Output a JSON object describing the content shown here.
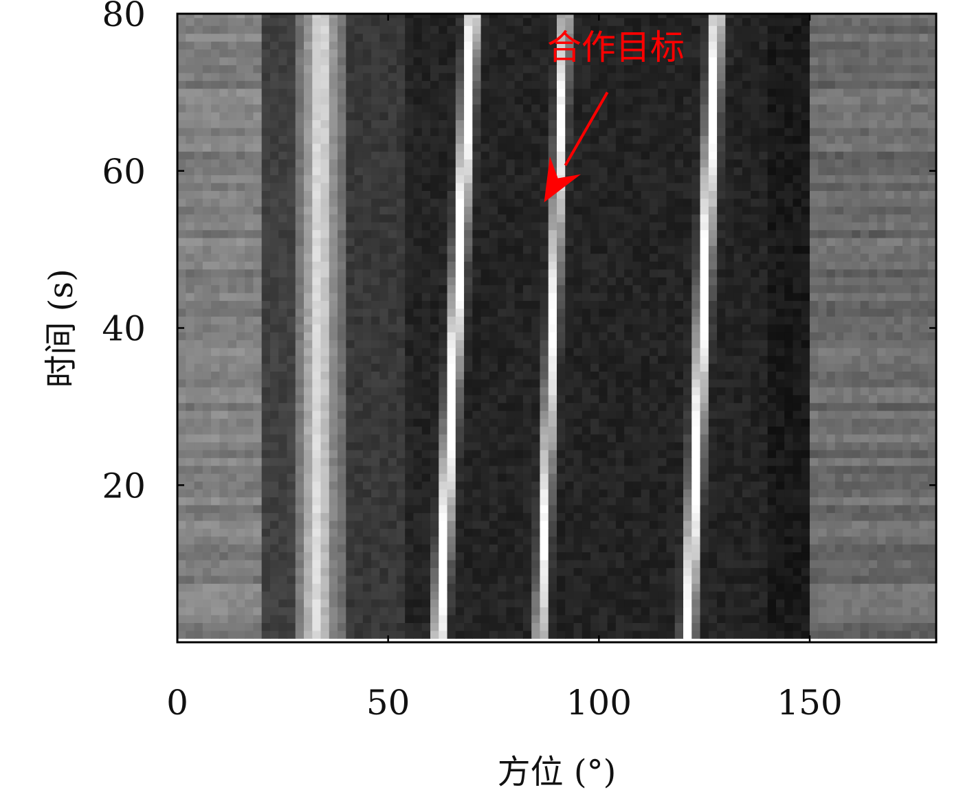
{
  "chart_data": {
    "type": "heatmap",
    "colormap": "gray",
    "xlabel": "方位 (°)",
    "ylabel": "时间 (s)",
    "xlim": [
      0,
      180
    ],
    "ylim": [
      0,
      80
    ],
    "xticks": [
      0,
      50,
      100,
      150
    ],
    "yticks": [
      20,
      40,
      60,
      80
    ],
    "time_samples": [
      1,
      80
    ],
    "background_bands": [
      {
        "from": 0,
        "to": 20,
        "intensity": 0.5
      },
      {
        "from": 20,
        "to": 28,
        "intensity": 0.25
      },
      {
        "from": 28,
        "to": 40,
        "intensity": 0.42
      },
      {
        "from": 40,
        "to": 55,
        "intensity": 0.22
      },
      {
        "from": 55,
        "to": 140,
        "intensity": 0.14
      },
      {
        "from": 140,
        "to": 150,
        "intensity": 0.1
      },
      {
        "from": 150,
        "to": 180,
        "intensity": 0.42
      }
    ],
    "tracks": [
      {
        "bearing_t0": 62,
        "bearing_t80": 70,
        "intensity": 1.0,
        "width": 1.6
      },
      {
        "bearing_t0": 86,
        "bearing_t80": 92,
        "intensity": 0.85,
        "width": 1.4
      },
      {
        "bearing_t0": 121,
        "bearing_t80": 128,
        "intensity": 0.95,
        "width": 1.6
      },
      {
        "bearing_t0": 33,
        "bearing_t80": 34,
        "intensity": 0.45,
        "width": 3.0
      }
    ],
    "annotations": [
      {
        "text": "合作目标",
        "color": "#ff0000",
        "text_at": [
          104,
          76
        ],
        "arrow_tail": [
          102,
          70
        ],
        "arrow_head": [
          87,
          56
        ]
      }
    ]
  }
}
